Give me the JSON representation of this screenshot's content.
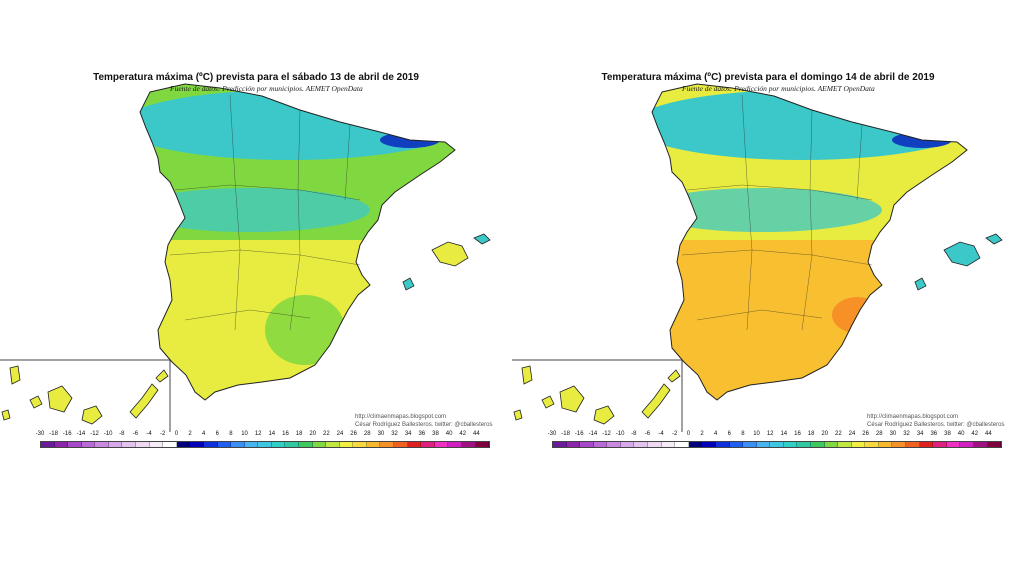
{
  "maps": [
    {
      "title": "Temperatura máxima (ºC) prevista para el sábado 13 de abril de 2019",
      "subtitle": "Fuente de datos: Predicción por municipios. AEMET OpenData",
      "credit_url": "http://climaenmapas.blogspot.com",
      "credit_author": "César Rodríguez Ballesteros. twitter: @cballesteros",
      "variant": "cooler"
    },
    {
      "title": "Temperatura máxima (ºC) prevista para el domingo 14 de abril de 2019",
      "subtitle": "Fuente de datos: Predicción por municipios. AEMET OpenData",
      "credit_url": "http://climaenmapas.blogspot.com",
      "credit_author": "César Rodríguez Ballesteros. twitter: @cballesteros",
      "variant": "warmer"
    }
  ],
  "legend": {
    "labels": [
      "-30",
      "-18",
      "-16",
      "-14",
      "-12",
      "-10",
      "-8",
      "-6",
      "-4",
      "-2",
      "0",
      "2",
      "4",
      "6",
      "8",
      "10",
      "12",
      "14",
      "16",
      "18",
      "20",
      "22",
      "24",
      "26",
      "28",
      "30",
      "32",
      "34",
      "36",
      "38",
      "40",
      "42",
      "44"
    ],
    "colors": [
      "#6a1b9a",
      "#8e24aa",
      "#a64ac9",
      "#b86ad6",
      "#c98ae0",
      "#d8a8e8",
      "#e4c2ee",
      "#eed8f2",
      "#f6ecf8",
      "#ffffff",
      "#00007a",
      "#0000b8",
      "#1030e0",
      "#2060f0",
      "#3a8ef5",
      "#4ab4f0",
      "#3cc8e0",
      "#30d0c8",
      "#30c8a0",
      "#40c860",
      "#80d840",
      "#c0e840",
      "#f0f040",
      "#f8d840",
      "#f8b830",
      "#f89028",
      "#f06020",
      "#e02020",
      "#e02080",
      "#f030c0",
      "#d020c0",
      "#a01080",
      "#800040"
    ]
  },
  "colors": {
    "sea": "#ffffff",
    "border": "#222222",
    "cool": "#3cc8c8",
    "mild": "#80d840",
    "warm": "#e8ec40",
    "hot": "#f8c030",
    "cold": "#1040c0"
  }
}
